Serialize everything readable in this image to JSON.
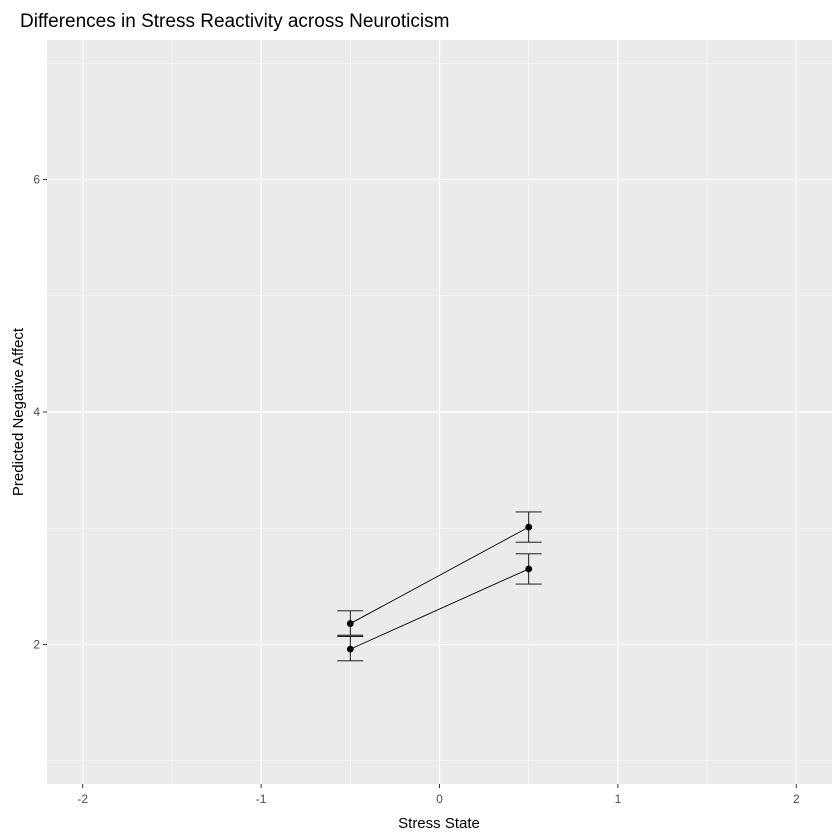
{
  "chart_data": {
    "type": "line",
    "title": "Differences in Stress Reactivity across Neuroticism",
    "xlabel": "Stress State",
    "ylabel": "Predicted Negative Affect",
    "xlim": [
      -2.2,
      2.2
    ],
    "ylim": [
      0.8,
      7.2
    ],
    "x_ticks": [
      -2,
      -1,
      0,
      1,
      2
    ],
    "x_tick_labels": [
      "-2",
      "-1",
      "0",
      "1",
      "2"
    ],
    "y_ticks": [
      2,
      4,
      6
    ],
    "y_tick_labels": [
      "2",
      "4",
      "6"
    ],
    "x_minor": [
      -1.5,
      -0.5,
      0.5,
      1.5
    ],
    "y_minor": [
      1,
      3,
      5,
      7
    ],
    "grid": true,
    "legend": "none",
    "series": [
      {
        "x": [
          -0.5,
          0.5
        ],
        "y": [
          2.18,
          3.01
        ],
        "ymin": [
          2.08,
          2.88
        ],
        "ymax": [
          2.29,
          3.14
        ]
      },
      {
        "x": [
          -0.5,
          0.5
        ],
        "y": [
          1.96,
          2.65
        ],
        "ymin": [
          1.86,
          2.52
        ],
        "ymax": [
          2.07,
          2.78
        ]
      }
    ],
    "colors": {
      "panel": "#ebebeb",
      "grid_major": "#ffffff",
      "line": "#000000",
      "tick": "#333333"
    }
  }
}
